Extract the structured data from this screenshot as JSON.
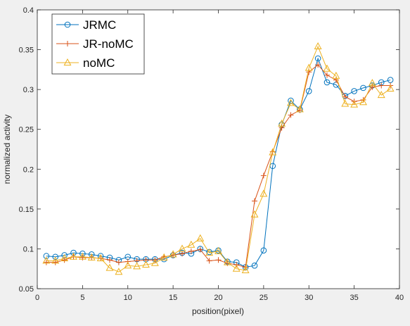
{
  "chart_data": {
    "type": "line",
    "title": "",
    "xlabel": "position(pixel)",
    "ylabel": "normalized activity",
    "xlim": [
      0,
      40
    ],
    "ylim": [
      0.05,
      0.4
    ],
    "xticks": [
      0,
      5,
      10,
      15,
      20,
      25,
      30,
      35,
      40
    ],
    "yticks": [
      0.05,
      0.1,
      0.15,
      0.2,
      0.25,
      0.3,
      0.35,
      0.4
    ],
    "xtick_labels": [
      "0",
      "5",
      "10",
      "15",
      "20",
      "25",
      "30",
      "35",
      "40"
    ],
    "ytick_labels": [
      "0.05",
      "0.1",
      "0.15",
      "0.2",
      "0.25",
      "0.3",
      "0.35",
      "0.4"
    ],
    "grid": false,
    "legend_position": "top-left",
    "x": [
      1,
      2,
      3,
      4,
      5,
      6,
      7,
      8,
      9,
      10,
      11,
      12,
      13,
      14,
      15,
      16,
      17,
      18,
      19,
      20,
      21,
      22,
      23,
      24,
      25,
      26,
      27,
      28,
      29,
      30,
      31,
      32,
      33,
      34,
      35,
      36,
      37,
      38,
      39
    ],
    "series": [
      {
        "name": "JRMC",
        "color": "#0072BD",
        "marker": "circle",
        "values": [
          0.091,
          0.09,
          0.092,
          0.095,
          0.094,
          0.093,
          0.091,
          0.089,
          0.086,
          0.09,
          0.087,
          0.087,
          0.087,
          0.087,
          0.092,
          0.095,
          0.094,
          0.1,
          0.096,
          0.098,
          0.084,
          0.083,
          0.077,
          0.079,
          0.098,
          0.204,
          0.256,
          0.286,
          0.275,
          0.298,
          0.339,
          0.309,
          0.306,
          0.292,
          0.298,
          0.302,
          0.305,
          0.309,
          0.312
        ]
      },
      {
        "name": "JR-noMC",
        "color": "#D95319",
        "marker": "plus",
        "values": [
          0.083,
          0.083,
          0.086,
          0.09,
          0.089,
          0.089,
          0.088,
          0.086,
          0.083,
          0.084,
          0.085,
          0.086,
          0.086,
          0.09,
          0.092,
          0.094,
          0.097,
          0.099,
          0.085,
          0.086,
          0.082,
          0.08,
          0.077,
          0.16,
          0.192,
          0.222,
          0.252,
          0.268,
          0.274,
          0.322,
          0.331,
          0.318,
          0.312,
          0.291,
          0.285,
          0.287,
          0.303,
          0.305,
          0.305
        ]
      },
      {
        "name": "noMC",
        "color": "#EDB120",
        "marker": "triangle",
        "values": [
          0.085,
          0.085,
          0.088,
          0.09,
          0.09,
          0.089,
          0.088,
          0.076,
          0.071,
          0.079,
          0.078,
          0.08,
          0.082,
          0.089,
          0.093,
          0.1,
          0.105,
          0.113,
          0.095,
          0.097,
          0.083,
          0.075,
          0.073,
          0.143,
          0.169,
          0.221,
          0.257,
          0.283,
          0.275,
          0.327,
          0.354,
          0.326,
          0.317,
          0.282,
          0.281,
          0.284,
          0.308,
          0.293,
          0.301
        ]
      }
    ]
  }
}
